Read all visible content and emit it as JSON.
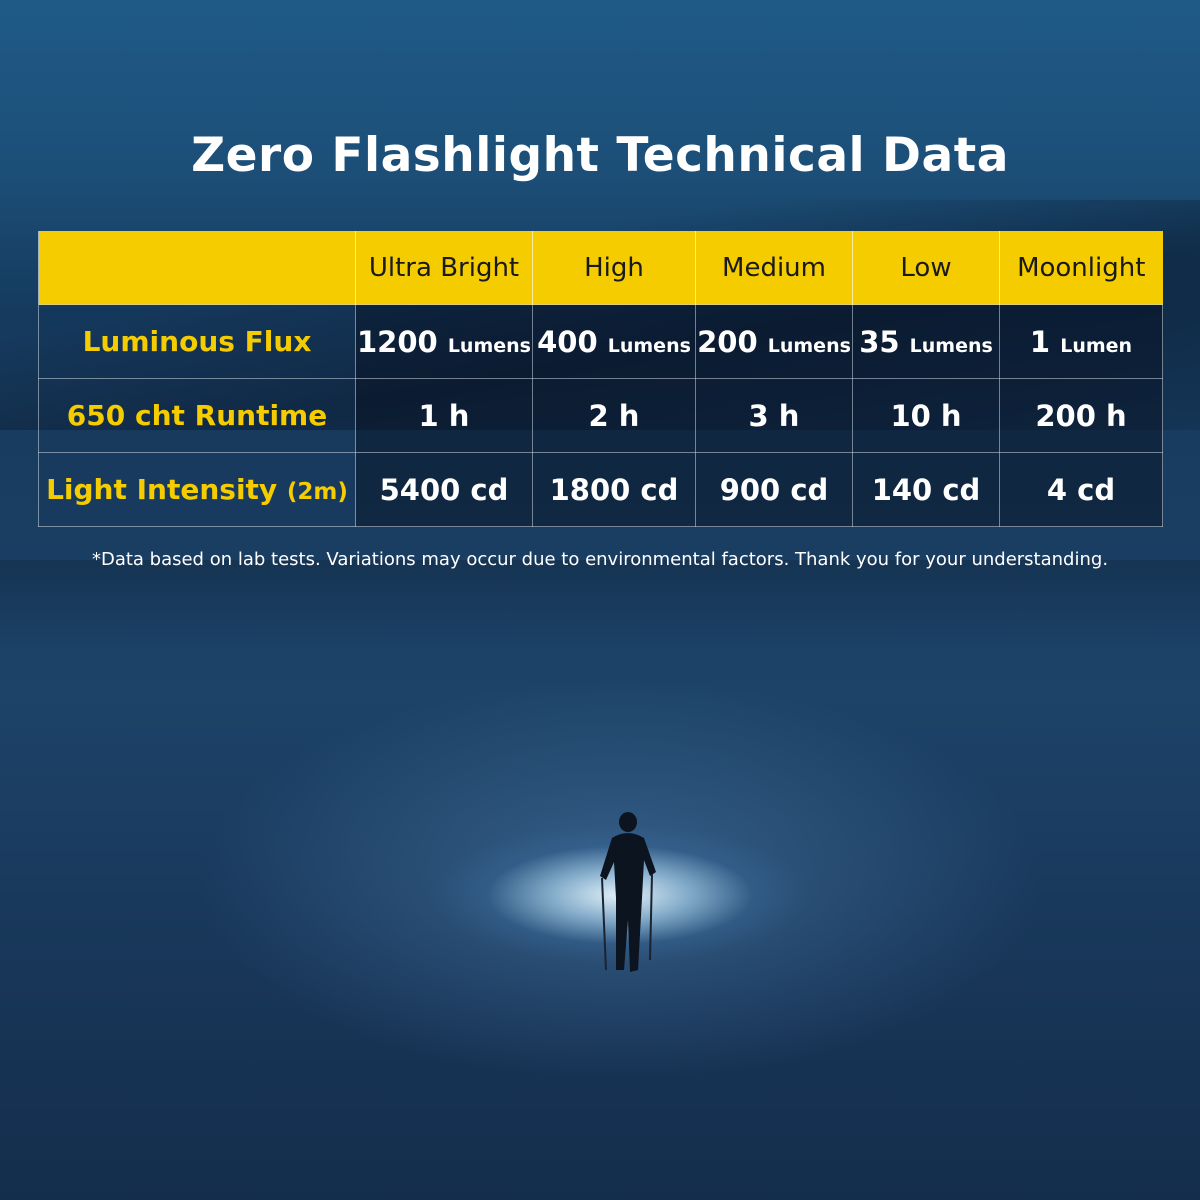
{
  "title": "Zero Flashlight Technical Data",
  "table": {
    "headers": [
      "",
      "Ultra Bright",
      "High",
      "Medium",
      "Low",
      "Moonlight"
    ],
    "rows": [
      {
        "label": "Luminous Flux",
        "label_suffix": "",
        "cells": [
          {
            "value": "1200",
            "unit": "Lumens"
          },
          {
            "value": "400",
            "unit": "Lumens"
          },
          {
            "value": "200",
            "unit": "Lumens"
          },
          {
            "value": "35",
            "unit": "Lumens"
          },
          {
            "value": "1",
            "unit": "Lumen"
          }
        ]
      },
      {
        "label": "650 cht Runtime",
        "label_suffix": "",
        "cells": [
          {
            "value": "1 h",
            "unit": ""
          },
          {
            "value": "2 h",
            "unit": ""
          },
          {
            "value": "3 h",
            "unit": ""
          },
          {
            "value": "10 h",
            "unit": ""
          },
          {
            "value": "200 h",
            "unit": ""
          }
        ]
      },
      {
        "label": "Light Intensity",
        "label_suffix": "(2m)",
        "cells": [
          {
            "value": "5400 cd",
            "unit": ""
          },
          {
            "value": "1800 cd",
            "unit": ""
          },
          {
            "value": "900 cd",
            "unit": ""
          },
          {
            "value": "140 cd",
            "unit": ""
          },
          {
            "value": "4 cd",
            "unit": ""
          }
        ]
      }
    ]
  },
  "note": "*Data based on lab tests. Variations may occur due to environmental factors. Thank you for your understanding.",
  "colors": {
    "accent": "#f5cc00",
    "text": "#ffffff",
    "background": "#1a3e62"
  }
}
